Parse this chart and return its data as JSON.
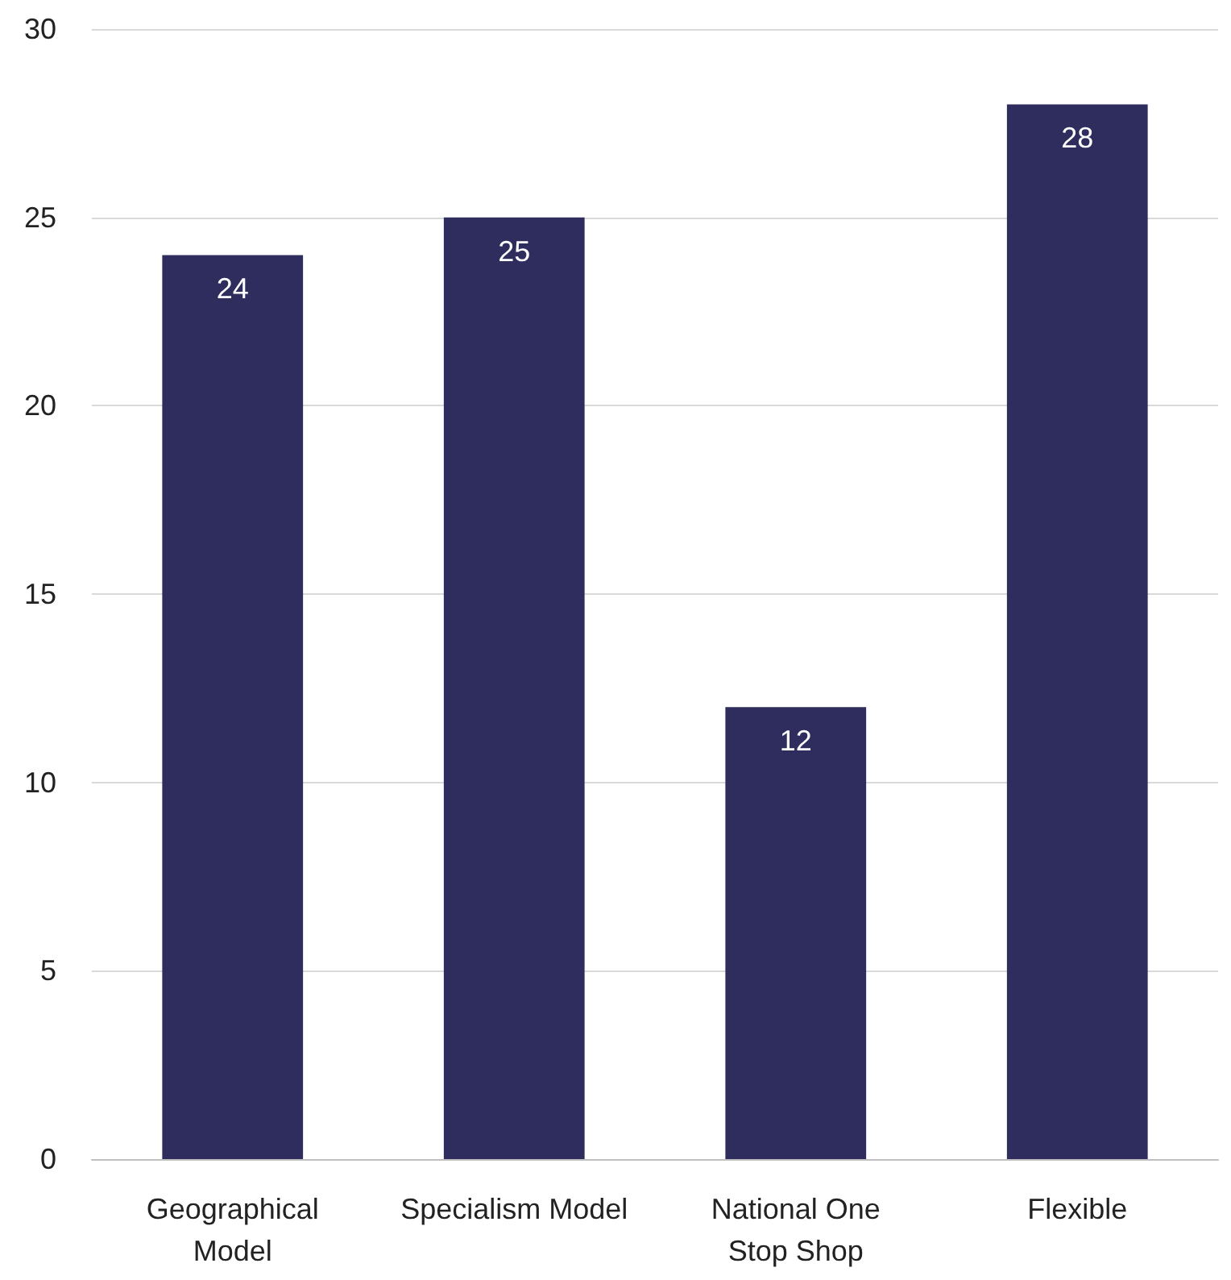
{
  "chart_data": {
    "type": "bar",
    "categories": [
      "Geographical\nModel",
      "Specialism Model",
      "National One\nStop Shop",
      "Flexible"
    ],
    "values": [
      24,
      25,
      12,
      28
    ],
    "color": "#2e2d5e",
    "ylim": [
      0,
      30
    ],
    "yticks": [
      0,
      5,
      10,
      15,
      20,
      25,
      30
    ],
    "grid": "y",
    "data_labels": true
  }
}
